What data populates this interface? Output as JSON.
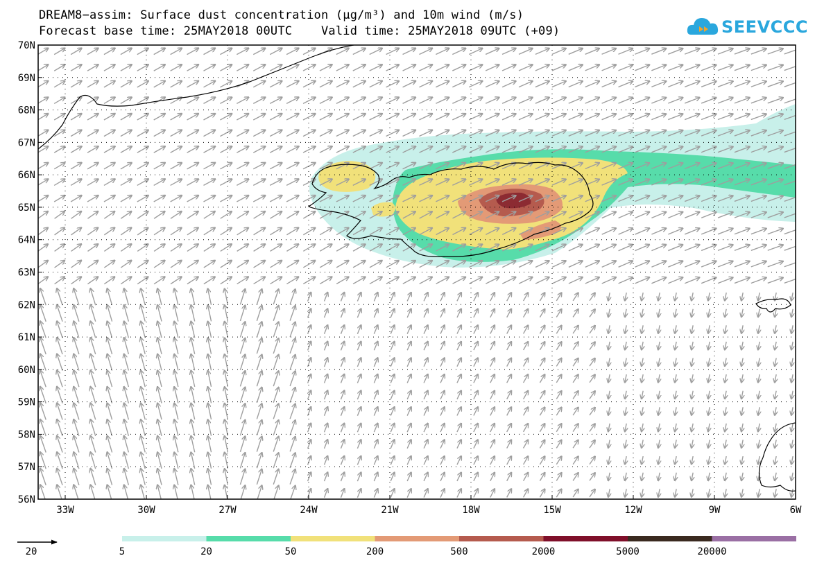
{
  "title_line1": "DREAM8−assim: Surface dust concentration (μg/m³) and 10m wind (m/s)",
  "title_line2": "Forecast base time: 25MAY2018 00UTC    Valid time: 25MAY2018 09UTC (+09)",
  "logo_text": "SEEVCCC",
  "colors": {
    "wind_arrow": "#9e9e9e",
    "coast": "#000000",
    "grid": "#000000",
    "dust_5": "#c8f0ea",
    "dust_20": "#57dcaa",
    "dust_50": "#f1e17a",
    "dust_200": "#e39a76",
    "dust_500": "#b55b4e",
    "dust_2000": "#8c2b32"
  },
  "map": {
    "lat_labels": [
      "70N",
      "69N",
      "68N",
      "67N",
      "66N",
      "65N",
      "64N",
      "63N",
      "62N",
      "61N",
      "60N",
      "59N",
      "58N",
      "57N",
      "56N"
    ],
    "lon_labels": [
      "33W",
      "30W",
      "27W",
      "24W",
      "21W",
      "18W",
      "15W",
      "12W",
      "9W",
      "6W"
    ],
    "lon_values": [
      -33,
      -30,
      -27,
      -24,
      -21,
      -18,
      -15,
      -12,
      -9,
      -6
    ],
    "lat_values": [
      70,
      69,
      68,
      67,
      66,
      65,
      64,
      63,
      62,
      61,
      60,
      59,
      58,
      57,
      56
    ],
    "lon_range": [
      -34,
      -6
    ],
    "lat_range": [
      56,
      70
    ]
  },
  "legend": {
    "wind_reference": "20",
    "color_levels": [
      "5",
      "20",
      "50",
      "200",
      "500",
      "2000",
      "5000",
      "20000"
    ],
    "color_swatches": [
      "#c8f0ea",
      "#57dcaa",
      "#f1e17a",
      "#e39a76",
      "#b55b4e",
      "#7f0f2a",
      "#3a2a20",
      "#9a6fa4"
    ]
  }
}
